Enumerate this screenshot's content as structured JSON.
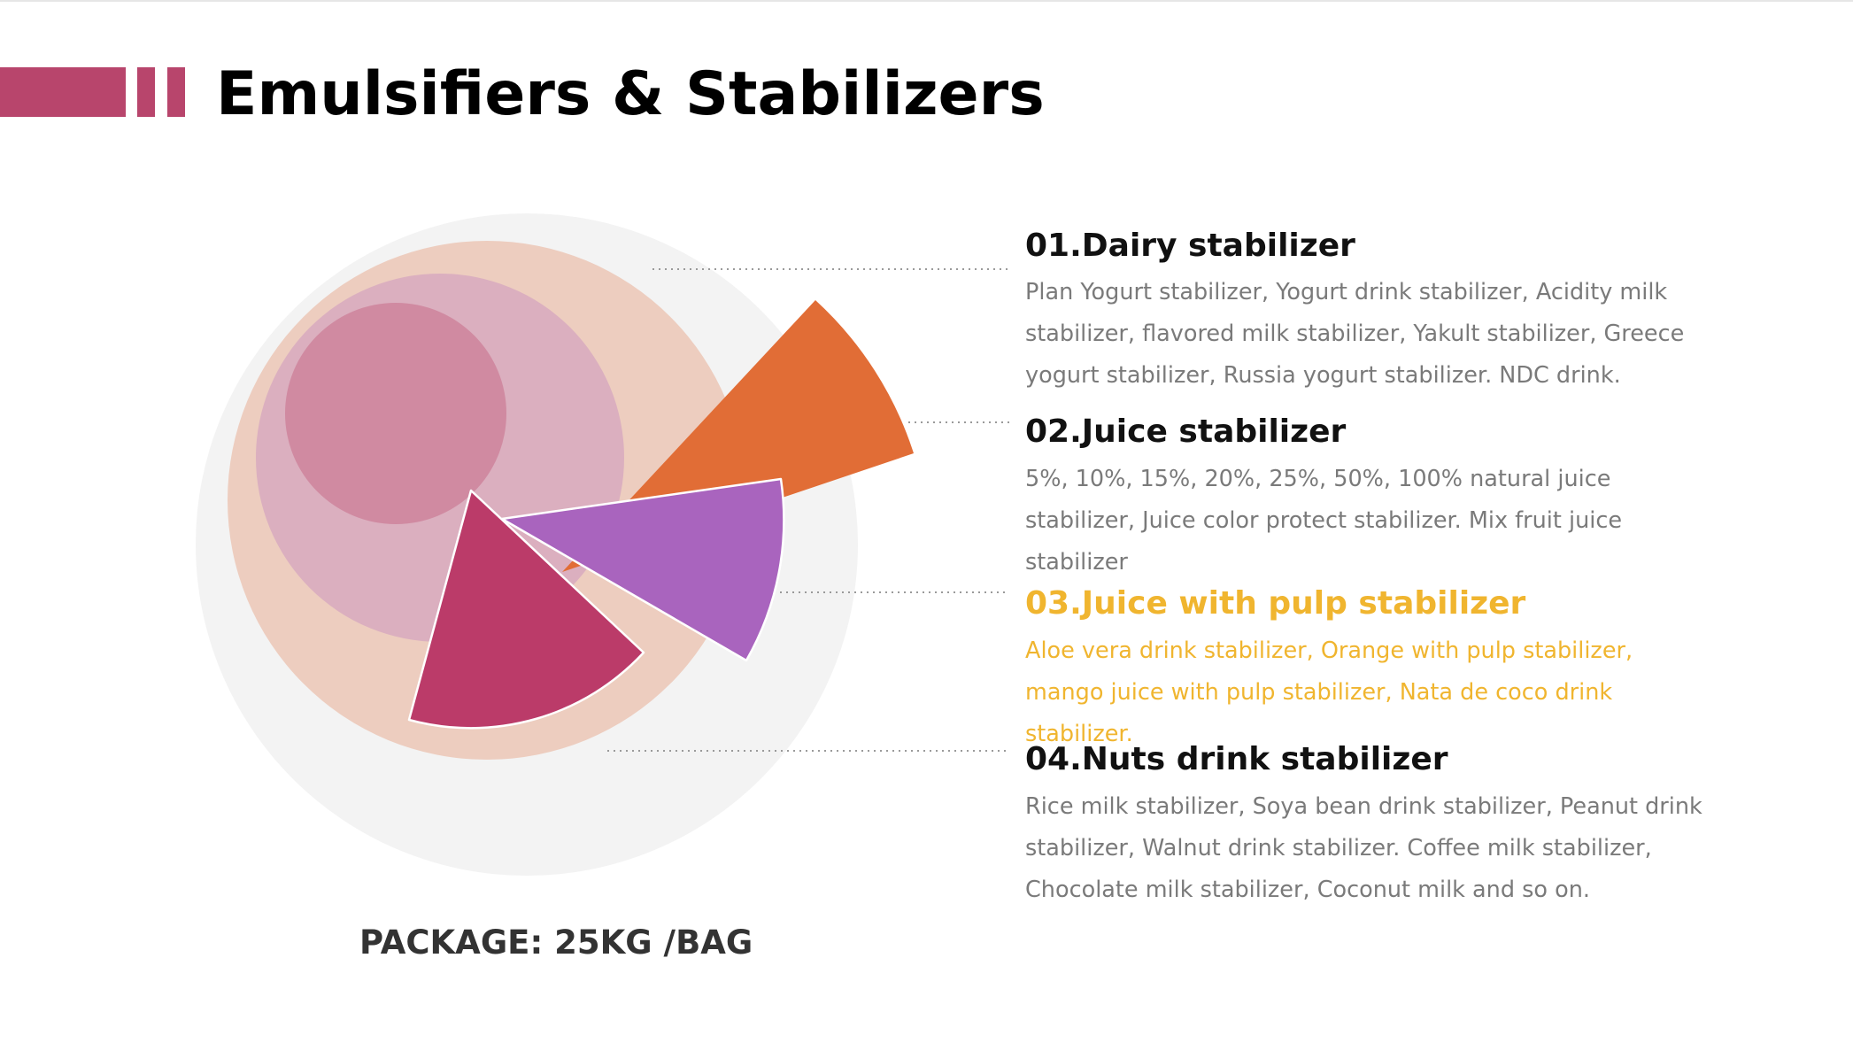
{
  "header": {
    "title": "Emulsifiers & Stabilizers",
    "accent_color": "#b8456c"
  },
  "diagram": {
    "colors": {
      "outer_circle": "#f3f3f3",
      "peach_circle": "#edcdbf",
      "light_pink_circle": "#dbafbf",
      "pink_circle": "#d08aa1",
      "orange_sector": "#e16d36",
      "purple_sector": "#a964be",
      "magenta_sector": "#bb3b69",
      "leader_line": "#9a9a9a"
    }
  },
  "items": [
    {
      "title": "01.Dairy stabilizer",
      "description": "Plan Yogurt stabilizer, Yogurt drink stabilizer, Acidity milk stabilizer, flavored milk stabilizer, Yakult stabilizer, Greece yogurt stabilizer, Russia yogurt stabilizer. NDC drink."
    },
    {
      "title": "02.Juice stabilizer",
      "description": "5%, 10%, 15%, 20%, 25%, 50%, 100% natural juice stabilizer, Juice color protect stabilizer. Mix fruit juice stabilizer"
    },
    {
      "title": "03.Juice with pulp stabilizer",
      "description": "Aloe vera drink stabilizer, Orange with pulp stabilizer, mango juice with pulp stabilizer, Nata de coco drink stabilizer.",
      "color": "#f0b52f"
    },
    {
      "title": "04.Nuts drink stabilizer",
      "description": "Rice milk stabilizer, Soya bean drink stabilizer, Peanut drink stabilizer, Walnut drink stabilizer. Coffee milk stabilizer, Chocolate milk stabilizer, Coconut milk and so on."
    }
  ],
  "footer": {
    "package": "PACKAGE: 25KG /BAG"
  }
}
